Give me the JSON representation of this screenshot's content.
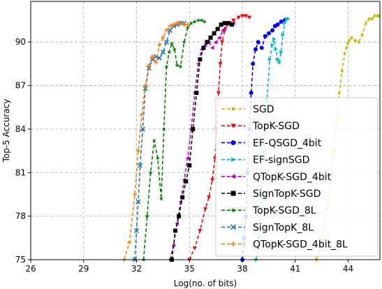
{
  "chart_data": {
    "type": "line",
    "title": "",
    "xlabel": "Log(no. of bits)",
    "ylabel": "Top-5 Accuracy",
    "xlim": [
      26,
      45.8
    ],
    "ylim": [
      75,
      92.8
    ],
    "xticks": [
      26,
      29,
      32,
      35,
      38,
      41,
      44
    ],
    "yticks": [
      75,
      78,
      81,
      84,
      87,
      90
    ],
    "grid": true,
    "legend_position": "lower-right",
    "series": [
      {
        "name": "SGD",
        "color": "#bfbf00",
        "marker": "diamond",
        "x": [
          42.2,
          42.5,
          42.8,
          43.0,
          43.2,
          43.35,
          43.5,
          43.65,
          43.8,
          43.9,
          43.97,
          44.05,
          44.2,
          44.4,
          44.6,
          44.8,
          45.0,
          45.2,
          45.35,
          45.5,
          45.65,
          45.75
        ],
        "y": [
          75.0,
          76.5,
          78.5,
          80.5,
          82.5,
          84.5,
          86.5,
          88.0,
          89.2,
          89.6,
          89.9,
          90.1,
          90.3,
          90.1,
          90.0,
          90.5,
          91.3,
          91.6,
          91.6,
          91.8,
          91.8,
          91.8
        ]
      },
      {
        "name": "TopK-SGD",
        "color": "#ff0000",
        "marker": "triangle-down",
        "x": [
          35.0,
          35.3,
          35.6,
          35.9,
          36.1,
          36.3,
          36.45,
          36.55,
          36.65,
          36.75,
          36.85,
          37.0,
          37.2,
          37.5,
          37.8,
          38.0,
          38.2,
          38.4
        ],
        "y": [
          75.0,
          75.8,
          77.0,
          78.5,
          79.3,
          80.5,
          82.0,
          84.0,
          86.5,
          88.5,
          90.0,
          90.8,
          91.3,
          91.5,
          91.7,
          91.8,
          91.8,
          91.7
        ]
      },
      {
        "name": "EF-QSGD_4bit",
        "color": "#0000ff",
        "marker": "circle",
        "x": [
          38.0,
          38.1,
          38.2,
          38.3,
          38.4,
          38.5,
          38.6,
          38.75,
          38.9,
          39.1,
          39.3,
          39.5,
          39.7,
          39.85,
          40.0,
          40.2,
          40.4
        ],
        "y": [
          75.0,
          76.5,
          78.0,
          81.0,
          84.0,
          86.5,
          88.5,
          89.5,
          90.0,
          89.6,
          90.4,
          90.6,
          90.8,
          91.1,
          91.2,
          91.4,
          91.5
        ]
      },
      {
        "name": "EF-signSGD",
        "color": "#00bfbf",
        "marker": "triangle-right",
        "x": [
          38.8,
          38.95,
          39.1,
          39.25,
          39.4,
          39.55,
          39.7,
          39.8,
          39.9,
          40.0,
          40.1,
          40.2,
          40.3,
          40.4,
          40.5,
          40.6
        ],
        "y": [
          75.0,
          76.5,
          79.5,
          82.5,
          86.0,
          88.8,
          89.8,
          90.2,
          89.5,
          88.8,
          88.6,
          89.3,
          90.5,
          91.3,
          91.6,
          91.6
        ]
      },
      {
        "name": "QTopK-SGD_4bit",
        "color": "#bf00bf",
        "marker": "triangle-left",
        "x": [
          33.9,
          34.1,
          34.3,
          34.5,
          34.7,
          34.9,
          35.1,
          35.3,
          35.5,
          35.7,
          35.9,
          36.1,
          36.3,
          36.5,
          36.7,
          36.9,
          37.1,
          37.3,
          37.5
        ],
        "y": [
          75.0,
          76.0,
          77.5,
          79.0,
          80.5,
          82.0,
          84.0,
          86.5,
          88.5,
          89.5,
          89.8,
          90.0,
          89.6,
          90.0,
          90.3,
          90.8,
          91.2,
          91.3,
          91.3
        ]
      },
      {
        "name": "SignTopK-SGD",
        "color": "#000000",
        "marker": "square",
        "x": [
          34.0,
          34.2,
          34.4,
          34.6,
          34.8,
          35.0,
          35.2,
          35.4,
          35.6,
          35.8,
          36.0,
          36.2,
          36.4,
          36.6,
          36.8,
          37.0,
          37.2,
          37.4
        ],
        "y": [
          75.0,
          77.0,
          78.0,
          79.3,
          80.4,
          81.5,
          84.0,
          86.5,
          88.8,
          89.6,
          90.0,
          90.3,
          90.6,
          90.9,
          91.2,
          91.3,
          91.3,
          91.2
        ]
      },
      {
        "name": "TopK-SGD_8L",
        "color": "#008000",
        "marker": "star",
        "x": [
          32.4,
          32.6,
          32.8,
          33.0,
          33.2,
          33.4,
          33.55,
          33.7,
          33.85,
          34.0,
          34.15,
          34.3,
          34.5,
          34.7,
          34.9,
          35.1,
          35.3,
          35.5,
          35.7,
          35.85
        ],
        "y": [
          75.0,
          78.0,
          81.0,
          83.2,
          82.0,
          79.2,
          84.0,
          88.3,
          89.3,
          89.9,
          89.5,
          88.4,
          88.3,
          90.0,
          91.0,
          91.3,
          91.4,
          91.5,
          91.5,
          91.4
        ]
      },
      {
        "name": "SignTopK_8L",
        "color": "#1f77b4",
        "marker": "x",
        "x": [
          31.9,
          32.0,
          32.1,
          32.2,
          32.35,
          32.5,
          32.7,
          32.9,
          33.1,
          33.3,
          33.5,
          33.7,
          33.9,
          34.1,
          34.3,
          34.5,
          34.7
        ],
        "y": [
          75.0,
          77.0,
          79.0,
          81.5,
          84.0,
          86.8,
          88.2,
          88.8,
          89.0,
          88.9,
          89.3,
          90.0,
          90.8,
          91.1,
          91.2,
          91.3,
          91.3
        ]
      },
      {
        "name": "QTopK-SGD_4bit_8L",
        "color": "#ff7f0e",
        "marker": "plus",
        "x": [
          31.3,
          31.6,
          31.9,
          32.1,
          32.3,
          32.5,
          32.7,
          32.9,
          33.1,
          33.3,
          33.5,
          33.7,
          33.9,
          34.1,
          34.3,
          34.5,
          34.7,
          34.9
        ],
        "y": [
          75.0,
          76.2,
          79.5,
          82.5,
          85.0,
          87.0,
          88.4,
          89.0,
          88.6,
          89.8,
          90.3,
          90.8,
          91.1,
          91.2,
          91.3,
          91.3,
          91.2,
          91.2
        ]
      }
    ]
  }
}
